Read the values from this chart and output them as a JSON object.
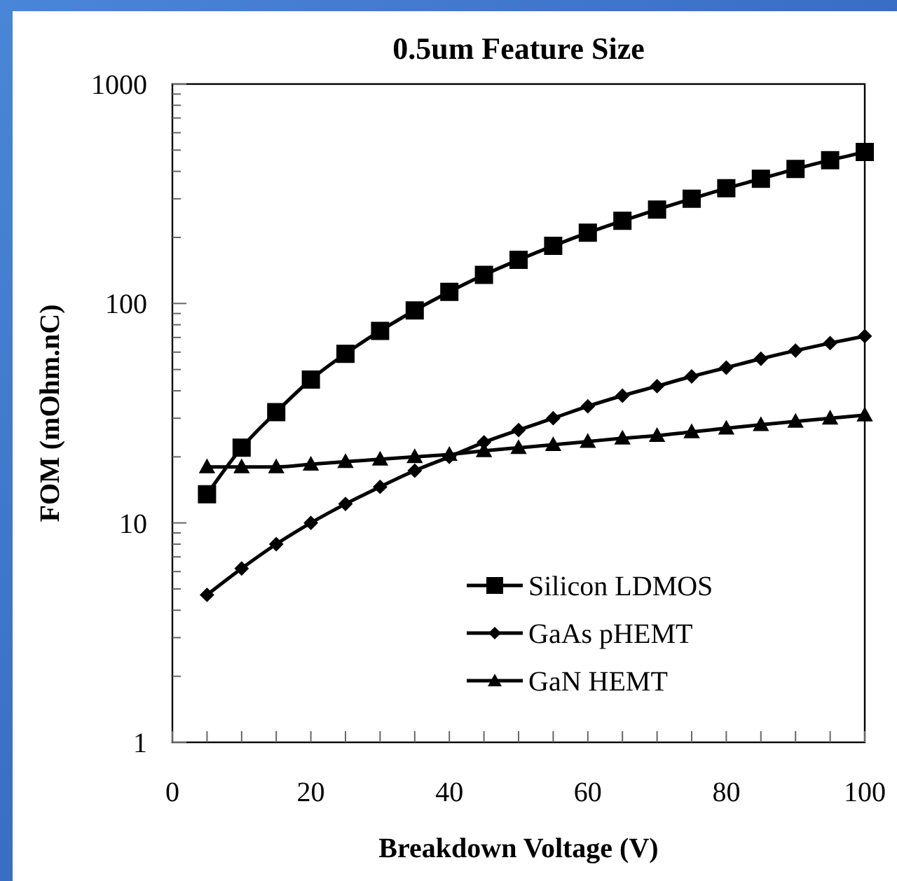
{
  "chart_data": {
    "type": "line",
    "title": "0.5um Feature Size",
    "xlabel": "Breakdown Voltage (V)",
    "ylabel": "FOM (mOhm.nC)",
    "log": "y",
    "xlim": [
      0,
      100
    ],
    "ylim": [
      1,
      1000
    ],
    "xticks": [
      0,
      {
        "value": 5,
        "label": null
      },
      {
        "value": 10,
        "label": null
      },
      {
        "value": 15,
        "label": null
      },
      20,
      {
        "value": 25,
        "label": null
      },
      {
        "value": 30,
        "label": null
      },
      {
        "value": 35,
        "label": null
      },
      40,
      {
        "value": 45,
        "label": null
      },
      {
        "value": 50,
        "label": null
      },
      {
        "value": 55,
        "label": null
      },
      60,
      {
        "value": 65,
        "label": null
      },
      {
        "value": 70,
        "label": null
      },
      {
        "value": 75,
        "label": null
      },
      80,
      {
        "value": 85,
        "label": null
      },
      {
        "value": 90,
        "label": null
      },
      {
        "value": 95,
        "label": null
      },
      100
    ],
    "yticks": [
      1,
      {
        "value": 2,
        "label": null
      },
      {
        "value": 3,
        "label": null
      },
      {
        "value": 4,
        "label": null
      },
      {
        "value": 5,
        "label": null
      },
      {
        "value": 6,
        "label": null
      },
      {
        "value": 7,
        "label": null
      },
      {
        "value": 8,
        "label": null
      },
      {
        "value": 9,
        "label": null
      },
      10,
      {
        "value": 20,
        "label": null
      },
      {
        "value": 30,
        "label": null
      },
      {
        "value": 40,
        "label": null
      },
      {
        "value": 50,
        "label": null
      },
      {
        "value": 60,
        "label": null
      },
      {
        "value": 70,
        "label": null
      },
      {
        "value": 80,
        "label": null
      },
      {
        "value": 90,
        "label": null
      },
      100,
      {
        "value": 200,
        "label": null
      },
      {
        "value": 300,
        "label": null
      },
      {
        "value": 400,
        "label": null
      },
      {
        "value": 500,
        "label": null
      },
      {
        "value": 600,
        "label": null
      },
      {
        "value": 700,
        "label": null
      },
      {
        "value": 800,
        "label": null
      },
      {
        "value": 900,
        "label": null
      },
      1000
    ],
    "x": [
      5,
      10,
      15,
      20,
      25,
      30,
      35,
      40,
      45,
      50,
      55,
      60,
      65,
      70,
      75,
      80,
      85,
      90,
      95,
      100
    ],
    "grid": false,
    "legend": "bottom right",
    "line_style": "solid",
    "series": [
      {
        "name": "Silicon LDMOS",
        "color": "#000000",
        "marker": "square",
        "values": [
          13.5,
          22,
          32,
          45,
          59,
          75,
          93,
          113,
          135,
          158,
          183,
          210,
          238,
          268,
          300,
          335,
          370,
          410,
          450,
          490
        ]
      },
      {
        "name": "GaAs pHEMT",
        "color": "#000000",
        "marker": "diamond",
        "values": [
          4.7,
          6.2,
          8,
          10,
          12.2,
          14.6,
          17.3,
          20,
          23.3,
          26.5,
          30,
          34,
          38,
          42,
          46.5,
          51,
          56,
          61,
          66,
          71
        ]
      },
      {
        "name": "GaN HEMT",
        "color": "#000000",
        "marker": "triangle",
        "values": [
          18,
          18,
          18,
          18.5,
          19,
          19.5,
          20,
          20.5,
          21.3,
          22,
          22.7,
          23.5,
          24.3,
          25,
          26,
          27,
          28,
          29,
          30,
          31
        ]
      }
    ]
  }
}
